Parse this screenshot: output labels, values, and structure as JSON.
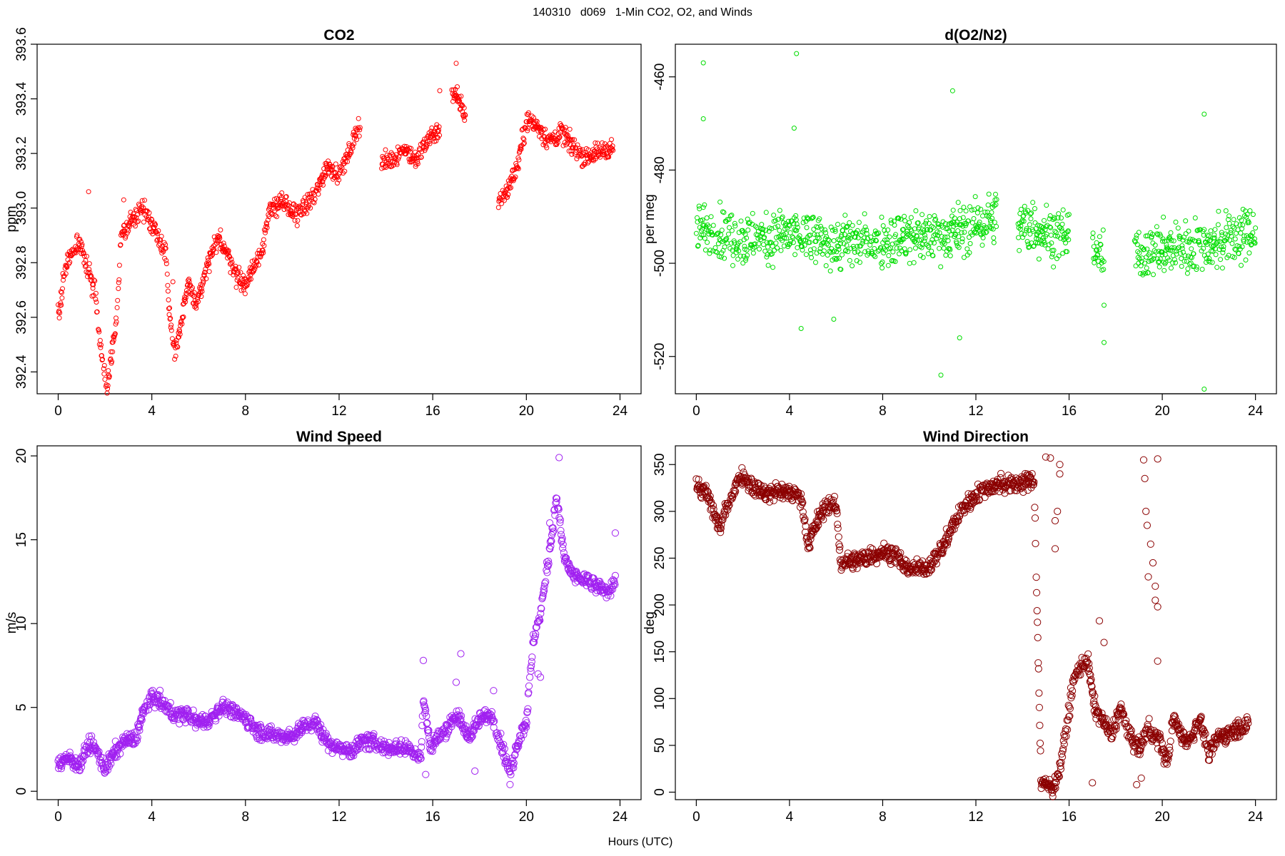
{
  "figure": {
    "title": "140310   d069   1-Min CO2, O2, and Winds",
    "xlabel": "Hours (UTC)"
  },
  "chart_data": [
    {
      "id": "co2",
      "type": "scatter",
      "title": "CO2",
      "ylabel": "ppm",
      "color": "#ff0000",
      "xlim": [
        -0.9,
        24.9
      ],
      "ylim": [
        392.32,
        393.6
      ],
      "xticks": [
        0,
        4,
        8,
        12,
        16,
        20,
        24
      ],
      "yticks": [
        392.4,
        392.6,
        392.8,
        393.0,
        393.2,
        393.4,
        393.6
      ],
      "ytick_labels": [
        "392.4",
        "392.6",
        "392.8",
        "393.0",
        "393.2",
        "393.4",
        "393.6"
      ],
      "marker_r": 3,
      "gaps": [
        [
          12.9,
          13.8
        ],
        [
          16.3,
          16.8
        ],
        [
          17.4,
          18.8
        ]
      ],
      "curve": [
        [
          0,
          392.6
        ],
        [
          0.2,
          392.72
        ],
        [
          0.5,
          392.83
        ],
        [
          0.8,
          392.88
        ],
        [
          1.0,
          392.86
        ],
        [
          1.2,
          392.79
        ],
        [
          1.4,
          392.74
        ],
        [
          1.6,
          392.68
        ],
        [
          1.8,
          392.5
        ],
        [
          2.0,
          392.38
        ],
        [
          2.1,
          392.34
        ],
        [
          2.3,
          392.48
        ],
        [
          2.5,
          392.6
        ],
        [
          2.7,
          392.9
        ],
        [
          3.0,
          392.93
        ],
        [
          3.3,
          392.98
        ],
        [
          3.6,
          393.0
        ],
        [
          3.9,
          392.96
        ],
        [
          4.2,
          392.91
        ],
        [
          4.6,
          392.84
        ],
        [
          4.8,
          392.56
        ],
        [
          5.0,
          392.48
        ],
        [
          5.3,
          392.6
        ],
        [
          5.6,
          392.73
        ],
        [
          5.9,
          392.64
        ],
        [
          6.2,
          392.74
        ],
        [
          6.5,
          392.82
        ],
        [
          6.9,
          392.89
        ],
        [
          7.3,
          392.82
        ],
        [
          7.7,
          392.74
        ],
        [
          8.0,
          392.72
        ],
        [
          8.7,
          392.85
        ],
        [
          9.0,
          392.98
        ],
        [
          9.5,
          393.03
        ],
        [
          10.0,
          392.98
        ],
        [
          10.5,
          393.0
        ],
        [
          11.0,
          393.05
        ],
        [
          11.5,
          393.16
        ],
        [
          12.0,
          393.12
        ],
        [
          12.5,
          393.22
        ],
        [
          12.8,
          393.3
        ],
        [
          13.8,
          393.16
        ],
        [
          14.3,
          393.18
        ],
        [
          14.8,
          393.22
        ],
        [
          15.3,
          393.17
        ],
        [
          15.8,
          393.26
        ],
        [
          16.2,
          393.28
        ],
        [
          16.8,
          393.43
        ],
        [
          17.2,
          393.38
        ],
        [
          18.8,
          393.02
        ],
        [
          19.2,
          393.07
        ],
        [
          19.6,
          393.15
        ],
        [
          20.0,
          393.32
        ],
        [
          20.5,
          393.3
        ],
        [
          21.0,
          393.24
        ],
        [
          21.5,
          393.28
        ],
        [
          22.0,
          393.22
        ],
        [
          22.5,
          393.19
        ],
        [
          23.0,
          393.2
        ],
        [
          23.5,
          393.22
        ],
        [
          23.7,
          393.22
        ]
      ],
      "noise": 0.035,
      "spikes": [
        [
          1.3,
          393.06
        ],
        [
          17.0,
          393.53
        ],
        [
          16.3,
          393.43
        ],
        [
          2.8,
          393.03
        ],
        [
          4.9,
          392.73
        ]
      ]
    },
    {
      "id": "o2",
      "type": "scatter",
      "title": "d(O2/N2)",
      "ylabel": "per meg",
      "color": "#00dd00",
      "xlim": [
        -0.9,
        24.9
      ],
      "ylim": [
        -528,
        -453
      ],
      "xticks": [
        0,
        4,
        8,
        12,
        16,
        20,
        24
      ],
      "yticks": [
        -520,
        -500,
        -480,
        -460
      ],
      "ytick_labels": [
        "-520",
        "-500",
        "-480",
        "-460"
      ],
      "marker_r": 3,
      "gaps": [
        [
          12.9,
          13.8
        ],
        [
          16.0,
          17.0
        ],
        [
          17.5,
          18.8
        ]
      ],
      "curve": [
        [
          0,
          -492
        ],
        [
          2,
          -495
        ],
        [
          4,
          -494
        ],
        [
          6,
          -496
        ],
        [
          8,
          -495
        ],
        [
          10,
          -494
        ],
        [
          12,
          -492
        ],
        [
          12.9,
          -490
        ],
        [
          13.8,
          -492
        ],
        [
          16,
          -494
        ],
        [
          17.1,
          -496
        ],
        [
          17.5,
          -500
        ],
        [
          18.8,
          -498
        ],
        [
          20,
          -497
        ],
        [
          22,
          -496
        ],
        [
          24,
          -493
        ]
      ],
      "noise": 5.5,
      "spikes": [
        [
          0.3,
          -457
        ],
        [
          4.3,
          -455
        ],
        [
          0.3,
          -469
        ],
        [
          11.0,
          -463
        ],
        [
          4.2,
          -471
        ],
        [
          21.8,
          -468
        ],
        [
          10.5,
          -524
        ],
        [
          21.8,
          -527
        ],
        [
          17.5,
          -517
        ],
        [
          4.5,
          -514
        ],
        [
          11.3,
          -516
        ],
        [
          5.9,
          -512
        ],
        [
          17.5,
          -509
        ]
      ]
    },
    {
      "id": "wspd",
      "type": "scatter",
      "title": "Wind Speed",
      "ylabel": "m/s",
      "color": "#a020f0",
      "xlim": [
        -0.9,
        24.9
      ],
      "ylim": [
        -0.5,
        20.6
      ],
      "xticks": [
        0,
        4,
        8,
        12,
        16,
        20,
        24
      ],
      "yticks": [
        0,
        5,
        10,
        15,
        20
      ],
      "ytick_labels": [
        "0",
        "5",
        "10",
        "15",
        "20"
      ],
      "marker_r": 4.6,
      "gaps": [],
      "curve": [
        [
          0,
          1.7
        ],
        [
          0.5,
          2.0
        ],
        [
          0.9,
          1.5
        ],
        [
          1.3,
          2.8
        ],
        [
          1.6,
          2.5
        ],
        [
          2.0,
          1.3
        ],
        [
          2.4,
          2.3
        ],
        [
          2.8,
          3.0
        ],
        [
          3.3,
          3.1
        ],
        [
          3.6,
          4.6
        ],
        [
          4.0,
          5.6
        ],
        [
          4.4,
          5.3
        ],
        [
          5.0,
          4.5
        ],
        [
          5.5,
          4.6
        ],
        [
          6.0,
          4.1
        ],
        [
          6.5,
          4.3
        ],
        [
          7.0,
          5.1
        ],
        [
          7.5,
          4.7
        ],
        [
          8.0,
          4.4
        ],
        [
          8.5,
          3.6
        ],
        [
          9.0,
          3.4
        ],
        [
          9.5,
          3.3
        ],
        [
          10.0,
          3.3
        ],
        [
          10.5,
          3.9
        ],
        [
          11.0,
          4.1
        ],
        [
          11.5,
          2.9
        ],
        [
          12.0,
          2.6
        ],
        [
          12.5,
          2.4
        ],
        [
          13.0,
          3.0
        ],
        [
          13.5,
          2.9
        ],
        [
          14.0,
          2.6
        ],
        [
          14.5,
          2.6
        ],
        [
          15.0,
          2.5
        ],
        [
          15.5,
          2.0
        ],
        [
          15.6,
          5.5
        ],
        [
          15.9,
          2.7
        ],
        [
          16.5,
          3.6
        ],
        [
          17.0,
          4.6
        ],
        [
          17.5,
          3.3
        ],
        [
          18.0,
          4.3
        ],
        [
          18.5,
          4.6
        ],
        [
          19.0,
          2.5
        ],
        [
          19.3,
          1.0
        ],
        [
          19.6,
          2.8
        ],
        [
          20.0,
          4.2
        ],
        [
          20.3,
          9.0
        ],
        [
          20.6,
          10.5
        ],
        [
          20.9,
          13.5
        ],
        [
          21.3,
          17.5
        ],
        [
          21.6,
          14.0
        ],
        [
          22.0,
          12.8
        ],
        [
          22.5,
          12.6
        ],
        [
          23.0,
          12.2
        ],
        [
          23.5,
          11.9
        ],
        [
          23.8,
          12.6
        ]
      ],
      "noise": 0.45,
      "spikes": [
        [
          21.4,
          19.9
        ],
        [
          21.0,
          16.0
        ],
        [
          15.6,
          7.8
        ],
        [
          17.2,
          8.2
        ],
        [
          20.5,
          7.0
        ],
        [
          20.6,
          6.8
        ],
        [
          23.8,
          15.4
        ],
        [
          15.7,
          1.0
        ],
        [
          17.8,
          1.2
        ],
        [
          19.3,
          0.4
        ],
        [
          18.6,
          6.0
        ],
        [
          17.0,
          6.5
        ]
      ]
    },
    {
      "id": "wdir",
      "type": "scatter",
      "title": "Wind Direction",
      "ylabel": "deg",
      "color": "#8b0000",
      "xlim": [
        -0.9,
        24.9
      ],
      "ylim": [
        -8,
        370
      ],
      "xticks": [
        0,
        4,
        8,
        12,
        16,
        20,
        24
      ],
      "yticks": [
        0,
        50,
        100,
        150,
        200,
        250,
        300,
        350
      ],
      "ytick_labels": [
        "0",
        "50",
        "100",
        "150",
        "200",
        "250",
        "300",
        "350"
      ],
      "marker_r": 4.6,
      "gaps": [],
      "curve": [
        [
          0,
          330
        ],
        [
          0.5,
          315
        ],
        [
          1.0,
          282
        ],
        [
          1.4,
          310
        ],
        [
          1.9,
          340
        ],
        [
          2.5,
          325
        ],
        [
          3.0,
          318
        ],
        [
          3.5,
          322
        ],
        [
          4.0,
          320
        ],
        [
          4.5,
          316
        ],
        [
          4.8,
          265
        ],
        [
          5.2,
          290
        ],
        [
          5.6,
          308
        ],
        [
          6.0,
          305
        ],
        [
          6.2,
          245
        ],
        [
          7.0,
          248
        ],
        [
          7.5,
          252
        ],
        [
          8.0,
          257
        ],
        [
          8.5,
          255
        ],
        [
          9.0,
          240
        ],
        [
          9.5,
          238
        ],
        [
          10.0,
          242
        ],
        [
          10.6,
          262
        ],
        [
          11.0,
          285
        ],
        [
          11.5,
          305
        ],
        [
          12.0,
          318
        ],
        [
          12.5,
          325
        ],
        [
          13.0,
          330
        ],
        [
          13.5,
          328
        ],
        [
          14.0,
          331
        ],
        [
          14.5,
          333
        ],
        [
          14.8,
          10
        ],
        [
          15.1,
          8
        ],
        [
          15.3,
          4
        ],
        [
          15.6,
          25
        ],
        [
          15.9,
          70
        ],
        [
          16.2,
          120
        ],
        [
          16.5,
          135
        ],
        [
          16.8,
          140
        ],
        [
          17.1,
          90
        ],
        [
          17.5,
          75
        ],
        [
          17.8,
          60
        ],
        [
          18.2,
          90
        ],
        [
          18.6,
          60
        ],
        [
          19.0,
          45
        ],
        [
          19.4,
          70
        ],
        [
          19.6,
          60
        ],
        [
          19.9,
          55
        ],
        [
          20.2,
          30
        ],
        [
          20.5,
          80
        ],
        [
          20.8,
          60
        ],
        [
          21.2,
          55
        ],
        [
          21.6,
          80
        ],
        [
          22.0,
          40
        ],
        [
          22.4,
          60
        ],
        [
          22.8,
          62
        ],
        [
          23.2,
          68
        ],
        [
          23.7,
          72
        ]
      ],
      "noise": 9,
      "spikes": [
        [
          15.0,
          358
        ],
        [
          15.2,
          357
        ],
        [
          15.6,
          350
        ],
        [
          15.6,
          340
        ],
        [
          15.5,
          300
        ],
        [
          15.4,
          290
        ],
        [
          15.4,
          260
        ],
        [
          19.2,
          355
        ],
        [
          19.25,
          335
        ],
        [
          19.8,
          356
        ],
        [
          19.3,
          300
        ],
        [
          19.35,
          285
        ],
        [
          19.5,
          265
        ],
        [
          19.6,
          245
        ],
        [
          19.7,
          220
        ],
        [
          19.7,
          205
        ],
        [
          19.4,
          230
        ],
        [
          19.8,
          198
        ],
        [
          17.3,
          183
        ],
        [
          17.5,
          160
        ],
        [
          19.8,
          140
        ],
        [
          17.0,
          10
        ],
        [
          19.1,
          15
        ],
        [
          18.9,
          8
        ]
      ]
    }
  ]
}
